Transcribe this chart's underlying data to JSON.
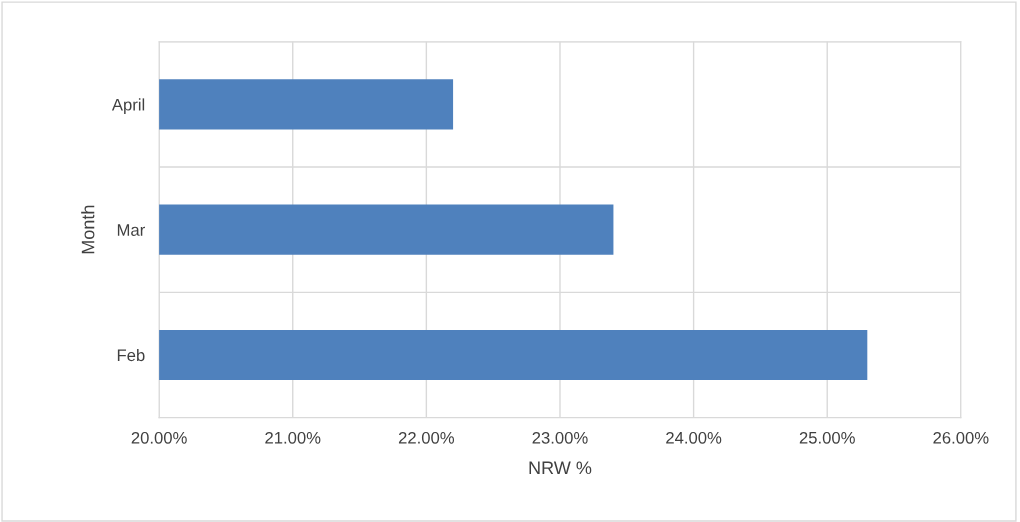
{
  "chart_data": {
    "type": "bar",
    "orientation": "horizontal",
    "categories": [
      "April",
      "Mar",
      "Feb"
    ],
    "values": [
      22.2,
      23.4,
      25.3
    ],
    "color": "#4f81bd",
    "xlim": [
      20,
      26
    ],
    "xticks": [
      {
        "value": 20,
        "label": "20.00%"
      },
      {
        "value": 21,
        "label": "21.00%"
      },
      {
        "value": 22,
        "label": "22.00%"
      },
      {
        "value": 23,
        "label": "23.00%"
      },
      {
        "value": 24,
        "label": "24.00%"
      },
      {
        "value": 25,
        "label": "25.00%"
      },
      {
        "value": 26,
        "label": "26.00%"
      }
    ],
    "xlabel": "NRW %",
    "ylabel": "Month",
    "grid": true,
    "legend": false
  }
}
